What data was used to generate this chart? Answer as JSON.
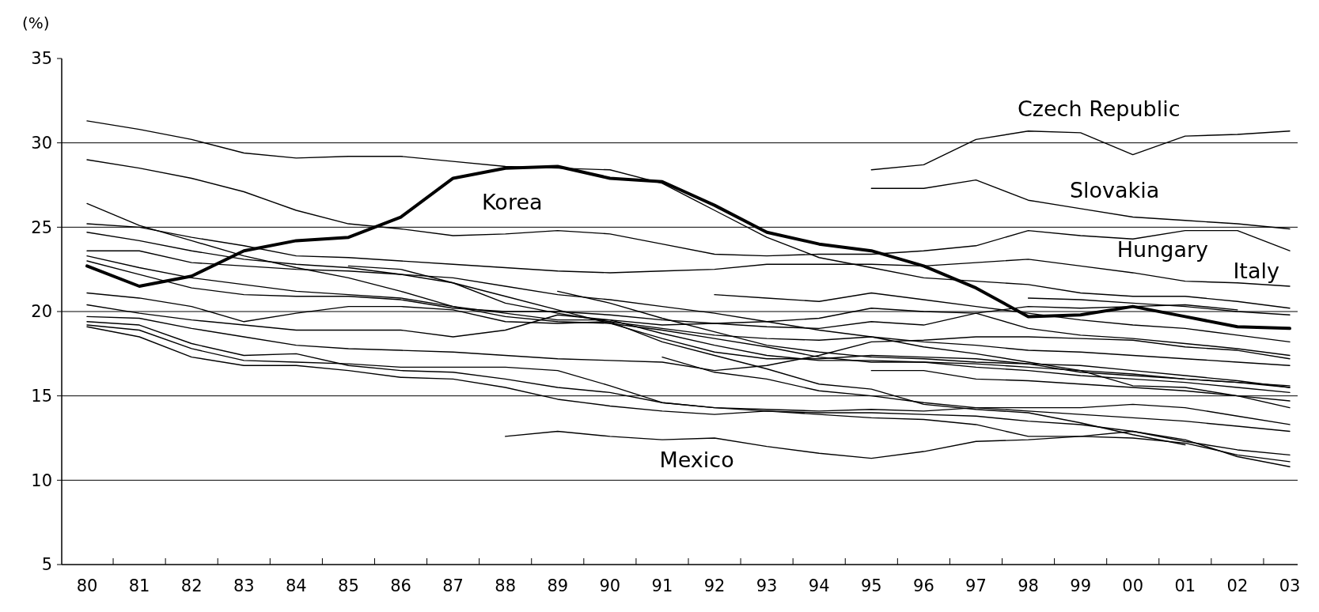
{
  "chart_data": {
    "type": "line",
    "ylabel": "(%)",
    "categories": [
      "80",
      "81",
      "82",
      "83",
      "84",
      "85",
      "86",
      "87",
      "88",
      "89",
      "90",
      "91",
      "92",
      "93",
      "94",
      "95",
      "96",
      "97",
      "98",
      "99",
      "00",
      "01",
      "02",
      "03"
    ],
    "ylim": [
      5,
      35
    ],
    "yticks": [
      5,
      10,
      15,
      20,
      25,
      30,
      35
    ],
    "grid": "y",
    "series": [
      {
        "name": "Korea",
        "color": "#000000",
        "values": [
          22.7,
          21.5,
          22.1,
          23.6,
          24.2,
          24.4,
          25.6,
          27.9,
          28.5,
          28.6,
          27.9,
          27.7,
          26.3,
          24.7,
          24.0,
          23.6,
          22.7,
          21.4,
          19.7,
          19.8,
          20.3,
          19.7,
          19.1,
          19.0
        ]
      },
      {
        "name": "Czech Republic",
        "color": "#000000",
        "values": [
          null,
          null,
          null,
          null,
          null,
          null,
          null,
          null,
          null,
          null,
          null,
          null,
          null,
          null,
          null,
          28.4,
          28.7,
          30.2,
          30.7,
          30.6,
          29.3,
          30.4,
          30.5,
          30.7
        ]
      },
      {
        "name": "Slovakia",
        "color": "#000000",
        "values": [
          null,
          null,
          null,
          null,
          null,
          null,
          null,
          null,
          null,
          null,
          null,
          null,
          null,
          null,
          null,
          27.3,
          27.3,
          27.8,
          26.6,
          26.1,
          25.6,
          25.4,
          25.2,
          24.9
        ]
      },
      {
        "name": "Hungary",
        "color": "#000000",
        "values": [
          29.0,
          28.5,
          27.9,
          27.1,
          26.0,
          25.2,
          24.9,
          24.5,
          24.6,
          24.8,
          24.6,
          24.0,
          23.4,
          23.3,
          23.4,
          23.4,
          23.6,
          23.9,
          24.8,
          24.5,
          24.3,
          24.8,
          24.8,
          23.6
        ]
      },
      {
        "name": "Italy",
        "color": "#000000",
        "values": [
          25.2,
          25.0,
          24.4,
          23.9,
          23.3,
          23.2,
          23.0,
          22.8,
          22.6,
          22.4,
          22.3,
          22.4,
          22.5,
          22.8,
          22.8,
          22.8,
          22.7,
          22.9,
          23.1,
          22.7,
          22.3,
          21.8,
          21.7,
          21.5
        ]
      },
      {
        "name": "Mexico",
        "color": "#000000",
        "values": [
          null,
          null,
          null,
          null,
          null,
          null,
          null,
          null,
          12.6,
          12.9,
          12.6,
          12.4,
          12.5,
          12.0,
          11.6,
          11.3,
          11.7,
          12.3,
          12.4,
          12.6,
          12.9,
          12.3,
          11.8,
          11.5
        ]
      },
      {
        "color": "#000000",
        "values": [
          31.3,
          30.8,
          30.2,
          29.4,
          29.1,
          29.2,
          29.2,
          28.9,
          28.6,
          28.5,
          28.4,
          27.6,
          26.0,
          24.4,
          23.2,
          22.6,
          22.0,
          21.8,
          21.6,
          21.1,
          20.9,
          20.9,
          20.6,
          20.2
        ]
      },
      {
        "color": "#000000",
        "values": [
          26.4,
          25.1,
          24.2,
          23.3,
          22.6,
          22.0,
          21.2,
          20.3,
          19.7,
          19.4,
          19.3,
          18.9,
          18.4,
          17.9,
          17.3,
          17.0,
          17.0,
          16.9,
          16.7,
          16.5,
          16.3,
          16.0,
          15.8,
          15.5
        ]
      },
      {
        "color": "#000000",
        "values": [
          24.7,
          24.2,
          23.6,
          23.1,
          22.8,
          22.6,
          22.2,
          21.7,
          20.9,
          20.1,
          19.3,
          18.4,
          17.6,
          17.2,
          17.2,
          17.4,
          17.3,
          17.2,
          16.9,
          16.4,
          16.2,
          16.0,
          15.8,
          15.6
        ]
      },
      {
        "color": "#000000",
        "values": [
          23.6,
          23.6,
          22.9,
          22.7,
          22.5,
          22.4,
          22.2,
          22.0,
          21.5,
          21.0,
          20.7,
          20.3,
          19.9,
          19.4,
          18.9,
          18.5,
          18.2,
          18.0,
          17.7,
          17.6,
          17.4,
          17.2,
          17.0,
          16.8
        ]
      },
      {
        "color": "#000000",
        "values": [
          23.3,
          22.6,
          22.0,
          21.6,
          21.2,
          21.0,
          20.8,
          20.3,
          19.9,
          19.5,
          19.5,
          19.2,
          19.3,
          19.1,
          19.0,
          19.4,
          19.2,
          19.9,
          19.0,
          18.6,
          18.4,
          18.1,
          17.8,
          17.4
        ]
      },
      {
        "color": "#000000",
        "values": [
          23.0,
          22.2,
          21.4,
          21.0,
          20.9,
          20.9,
          20.7,
          20.2,
          20.0,
          20.0,
          19.8,
          19.5,
          19.3,
          19.4,
          19.6,
          20.2,
          20.0,
          19.9,
          20.3,
          20.2,
          20.3,
          20.4,
          20.1,
          null
        ]
      },
      {
        "color": "#000000",
        "values": [
          21.1,
          20.8,
          20.3,
          19.4,
          19.9,
          20.3,
          20.3,
          20.1,
          19.4,
          19.3,
          19.4,
          19.0,
          18.6,
          18.4,
          18.3,
          18.5,
          17.9,
          17.5,
          17.0,
          16.5,
          15.6,
          15.5,
          15.0,
          14.3
        ]
      },
      {
        "color": "#000000",
        "values": [
          20.4,
          19.9,
          19.5,
          19.2,
          18.9,
          18.9,
          18.9,
          18.5,
          18.9,
          19.8,
          19.5,
          18.7,
          18.0,
          17.4,
          17.1,
          17.1,
          17.0,
          16.7,
          16.5,
          16.2,
          16.0,
          15.8,
          15.5,
          15.2
        ]
      },
      {
        "color": "#000000",
        "values": [
          19.7,
          19.6,
          19.0,
          18.5,
          18.0,
          17.8,
          17.7,
          17.6,
          17.4,
          17.2,
          17.1,
          17.0,
          16.5,
          16.8,
          17.4,
          18.2,
          18.3,
          18.5,
          18.5,
          18.4,
          18.3,
          17.9,
          17.7,
          17.2
        ]
      },
      {
        "color": "#000000",
        "values": [
          19.4,
          19.2,
          18.1,
          17.4,
          17.5,
          16.8,
          16.5,
          16.4,
          16.0,
          15.5,
          15.2,
          14.6,
          14.3,
          14.2,
          14.1,
          14.2,
          14.1,
          14.3,
          14.3,
          14.3,
          14.5,
          14.3,
          13.8,
          13.3
        ]
      },
      {
        "color": "#000000",
        "values": [
          19.2,
          18.9,
          17.8,
          17.1,
          17.0,
          16.9,
          16.7,
          16.7,
          16.7,
          16.5,
          15.6,
          14.6,
          14.3,
          14.1,
          13.9,
          13.7,
          13.6,
          13.3,
          12.6,
          12.6,
          12.5,
          12.2,
          11.5,
          11.1
        ]
      },
      {
        "color": "#000000",
        "values": [
          19.1,
          18.5,
          17.3,
          16.8,
          16.8,
          16.5,
          16.1,
          16.0,
          15.5,
          14.8,
          14.4,
          14.1,
          13.9,
          14.1,
          14.0,
          14.0,
          13.9,
          13.8,
          13.5,
          13.3,
          12.9,
          12.4,
          11.4,
          10.8
        ]
      },
      {
        "color": "#000000",
        "values": [
          null,
          null,
          null,
          null,
          null,
          22.7,
          22.5,
          21.7,
          20.5,
          19.9,
          19.4,
          18.2,
          17.4,
          16.6,
          15.7,
          15.4,
          14.5,
          14.2,
          14.0,
          13.4,
          12.7,
          12.1,
          null,
          null
        ]
      },
      {
        "color": "#000000",
        "values": [
          null,
          null,
          null,
          null,
          null,
          null,
          null,
          null,
          null,
          21.2,
          20.5,
          19.6,
          18.8,
          18.0,
          17.6,
          17.3,
          17.2,
          17.0,
          16.9,
          16.8,
          16.5,
          16.2,
          15.9,
          15.5
        ]
      },
      {
        "color": "#000000",
        "values": [
          null,
          null,
          null,
          null,
          null,
          null,
          null,
          null,
          null,
          null,
          null,
          17.3,
          16.4,
          16.0,
          15.3,
          15.0,
          14.6,
          14.3,
          14.1,
          13.9,
          13.7,
          13.5,
          13.2,
          12.9
        ]
      },
      {
        "color": "#000000",
        "values": [
          null,
          null,
          null,
          null,
          null,
          null,
          null,
          null,
          null,
          null,
          null,
          null,
          21.0,
          20.8,
          20.6,
          21.1,
          20.7,
          20.3,
          19.9,
          19.5,
          19.2,
          19.0,
          18.6,
          18.2
        ]
      },
      {
        "color": "#000000",
        "values": [
          null,
          null,
          null,
          null,
          null,
          null,
          null,
          null,
          null,
          null,
          null,
          null,
          null,
          null,
          null,
          16.5,
          16.5,
          16.0,
          15.9,
          15.7,
          15.5,
          15.3,
          15.0,
          14.7
        ]
      },
      {
        "color": "#000000",
        "values": [
          null,
          null,
          null,
          null,
          null,
          null,
          null,
          null,
          null,
          null,
          null,
          null,
          null,
          null,
          null,
          null,
          null,
          null,
          20.8,
          20.7,
          20.5,
          20.3,
          20.0,
          19.8
        ]
      }
    ]
  }
}
